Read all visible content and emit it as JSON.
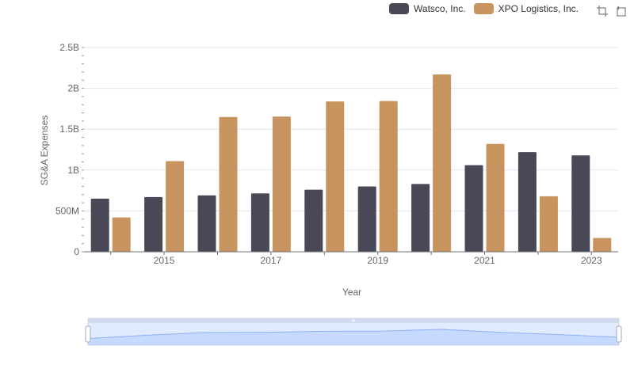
{
  "legend": {
    "items": [
      {
        "label": "Watsco, Inc.",
        "color": "#484856"
      },
      {
        "label": "XPO Logistics, Inc.",
        "color": "#c79460"
      }
    ]
  },
  "toolbox": {
    "icons": [
      "zoom-icon",
      "restore-icon"
    ]
  },
  "chart_data": {
    "type": "bar",
    "categories": [
      "2014",
      "2015",
      "2016",
      "2017",
      "2018",
      "2019",
      "2020",
      "2021",
      "2022",
      "2023"
    ],
    "x_tick_labels": [
      "2015",
      "2017",
      "2019",
      "2021",
      "2023"
    ],
    "series": [
      {
        "name": "Watsco, Inc.",
        "color": "#484856",
        "values": [
          650000000,
          670000000,
          690000000,
          715000000,
          760000000,
          800000000,
          830000000,
          1060000000,
          1220000000,
          1180000000
        ]
      },
      {
        "name": "XPO Logistics, Inc.",
        "color": "#c79460",
        "values": [
          420000000,
          1110000000,
          1650000000,
          1655000000,
          1840000000,
          1845000000,
          2170000000,
          1320000000,
          680000000,
          170000000
        ]
      }
    ],
    "xlabel": "Year",
    "ylabel": "SG&A Expenses",
    "ylim": [
      0,
      2500000000
    ],
    "y_ticks": [
      0,
      500000000,
      1000000000,
      1500000000,
      2000000000,
      2500000000
    ],
    "y_tick_labels": [
      "0",
      "500M",
      "1B",
      "1.5B",
      "2B",
      "2.5B"
    ],
    "grid": true,
    "legend_position": "top-right"
  }
}
